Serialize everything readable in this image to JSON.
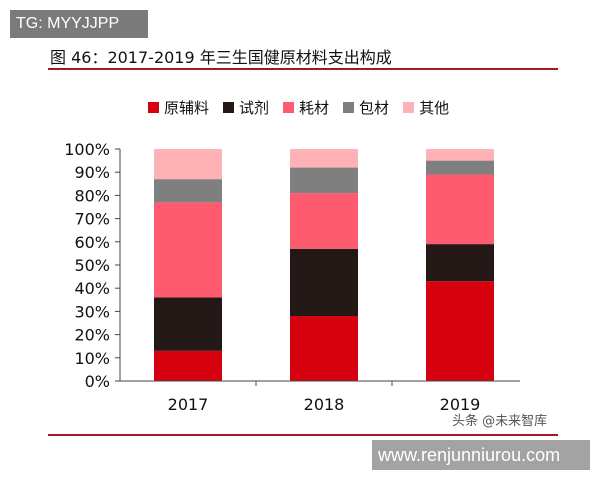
{
  "tag": "TG: MYYJJPP",
  "watermark": "头条 @未来智库",
  "url": "www.renjunniurou.com",
  "chart_data": {
    "type": "bar",
    "stacked": true,
    "title": "图 46：2017-2019 年三生国健原材料支出构成",
    "categories": [
      "2017",
      "2018",
      "2019"
    ],
    "ylim": [
      0,
      100
    ],
    "yticks": [
      "0%",
      "10%",
      "20%",
      "30%",
      "40%",
      "50%",
      "60%",
      "70%",
      "80%",
      "90%",
      "100%"
    ],
    "legend_position": "top",
    "grid": false,
    "series": [
      {
        "name": "原辅料",
        "color": "#d7000f",
        "values": [
          13,
          28,
          43
        ]
      },
      {
        "name": "试剂",
        "color": "#231815",
        "values": [
          23,
          29,
          16
        ]
      },
      {
        "name": "耗材",
        "color": "#ff5b6e",
        "values": [
          41,
          24,
          30
        ]
      },
      {
        "name": "包材",
        "color": "#7f7f7f",
        "values": [
          10,
          11,
          6
        ]
      },
      {
        "name": "其他",
        "color": "#ffb2b5",
        "values": [
          13,
          8,
          5
        ]
      }
    ]
  }
}
